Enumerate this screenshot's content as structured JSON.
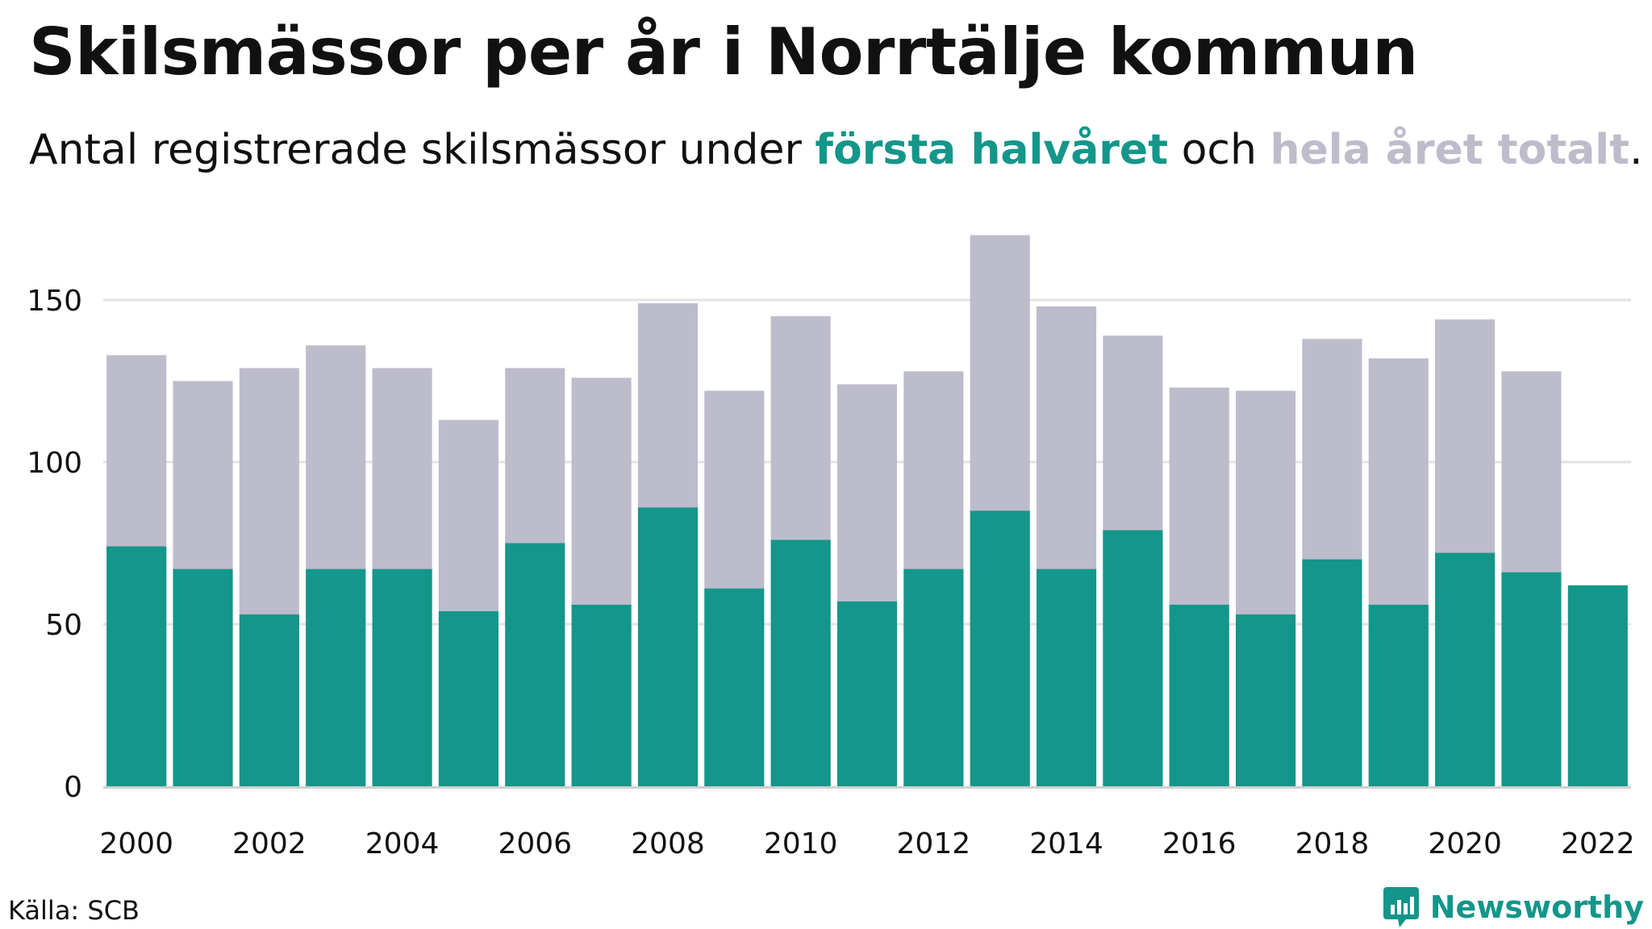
{
  "header": {
    "title": "Skilsmässor per år i Norrtälje kommun",
    "subtitle_prefix": "Antal registrerade skilsmässor under ",
    "subtitle_first": "första halvåret",
    "subtitle_mid": " och ",
    "subtitle_total": "hela året totalt",
    "subtitle_suffix": "."
  },
  "footer": {
    "source": "Källa: SCB",
    "brand": "Newsworthy"
  },
  "colors": {
    "first_half": "#14968a",
    "full_year": "#bdbccb",
    "grid": "#e3e3e3",
    "text": "#111111"
  },
  "chart_data": {
    "type": "bar",
    "title": "Skilsmässor per år i Norrtälje kommun",
    "xlabel": "",
    "ylabel": "",
    "categories": [
      "2000",
      "2001",
      "2002",
      "2003",
      "2004",
      "2005",
      "2006",
      "2007",
      "2008",
      "2009",
      "2010",
      "2011",
      "2012",
      "2013",
      "2014",
      "2015",
      "2016",
      "2017",
      "2018",
      "2019",
      "2020",
      "2021",
      "2022"
    ],
    "x_tick_labels": [
      "2000",
      "2002",
      "2004",
      "2006",
      "2008",
      "2010",
      "2012",
      "2014",
      "2016",
      "2018",
      "2020",
      "2022"
    ],
    "y_ticks": [
      0,
      50,
      100,
      150
    ],
    "ylim": [
      0,
      175
    ],
    "grid": true,
    "series": [
      {
        "name": "hela året totalt",
        "values": [
          133,
          125,
          129,
          136,
          129,
          113,
          129,
          126,
          149,
          122,
          145,
          124,
          128,
          170,
          148,
          139,
          123,
          122,
          138,
          132,
          144,
          128,
          null
        ]
      },
      {
        "name": "första halvåret",
        "values": [
          74,
          67,
          53,
          67,
          67,
          54,
          75,
          56,
          86,
          61,
          76,
          57,
          67,
          85,
          67,
          79,
          56,
          53,
          70,
          56,
          72,
          66,
          62
        ]
      }
    ]
  }
}
